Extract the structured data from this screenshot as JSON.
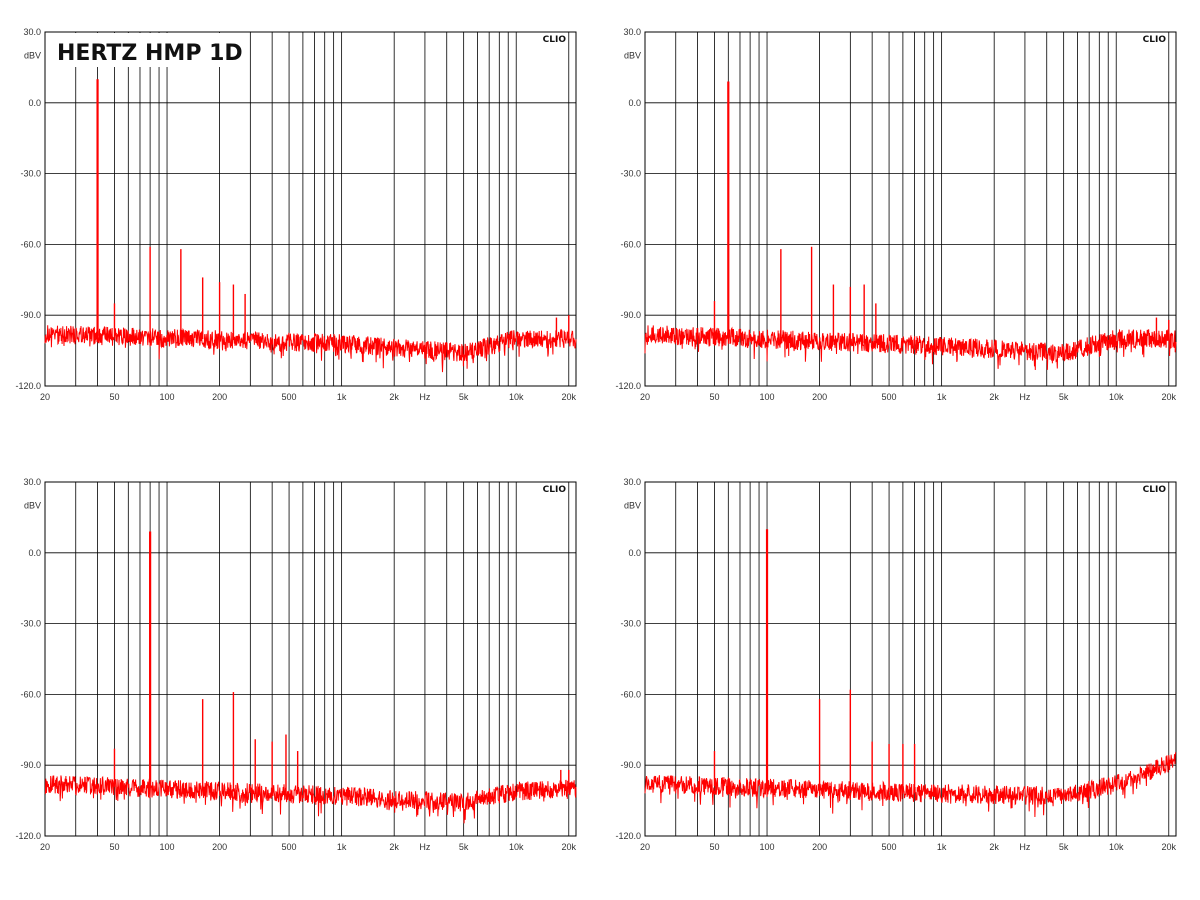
{
  "chart_data": [
    {
      "type": "line",
      "title": "HERTZ HMP 1D",
      "brand": "CLIO",
      "ylabel": "dBV",
      "xlabel": "Hz",
      "x_scale": "log",
      "xlim": [
        20,
        22000
      ],
      "ylim": [
        -120,
        30
      ],
      "y_ticks": [
        "30.0",
        "0.0",
        "-30.0",
        "-60.0",
        "-90.0",
        "-120.0"
      ],
      "x_ticks": [
        "20",
        "50",
        "100",
        "200",
        "500",
        "1k",
        "2k",
        "Hz",
        "5k",
        "10k",
        "20k"
      ],
      "grid": true,
      "color": "#ff0000",
      "fundamental_hz": 40,
      "series": [
        {
          "x": [
            20,
            40,
            50,
            80,
            120,
            160,
            200,
            240,
            280,
            1000,
            5000,
            10000,
            17000,
            20000,
            22000
          ],
          "values": [
            -98,
            10,
            -85,
            -61,
            -62,
            -74,
            -76,
            -77,
            -81,
            -102,
            -106,
            -100,
            -91,
            -90,
            -100
          ]
        }
      ]
    },
    {
      "type": "line",
      "brand": "CLIO",
      "ylabel": "dBV",
      "xlabel": "Hz",
      "x_scale": "log",
      "xlim": [
        20,
        22000
      ],
      "ylim": [
        -120,
        30
      ],
      "y_ticks": [
        "30.0",
        "0.0",
        "-30.0",
        "-60.0",
        "-90.0",
        "-120.0"
      ],
      "x_ticks": [
        "20",
        "50",
        "100",
        "200",
        "500",
        "1k",
        "2k",
        "Hz",
        "5k",
        "10k",
        "20k"
      ],
      "grid": true,
      "color": "#ff0000",
      "fundamental_hz": 60,
      "series": [
        {
          "x": [
            20,
            50,
            60,
            120,
            180,
            240,
            300,
            360,
            420,
            1000,
            5000,
            10000,
            17000,
            20000,
            22000
          ],
          "values": [
            -98,
            -84,
            9,
            -62,
            -61,
            -77,
            -78,
            -77,
            -85,
            -103,
            -106,
            -100,
            -91,
            -92,
            -100
          ]
        }
      ]
    },
    {
      "type": "line",
      "brand": "CLIO",
      "ylabel": "dBV",
      "xlabel": "Hz",
      "x_scale": "log",
      "xlim": [
        20,
        22000
      ],
      "ylim": [
        -120,
        30
      ],
      "y_ticks": [
        "30.0",
        "0.0",
        "-30.0",
        "-60.0",
        "-90.0",
        "-120.0"
      ],
      "x_ticks": [
        "20",
        "50",
        "100",
        "200",
        "500",
        "1k",
        "2k",
        "Hz",
        "5k",
        "10k",
        "20k"
      ],
      "grid": true,
      "color": "#ff0000",
      "fundamental_hz": 80,
      "series": [
        {
          "x": [
            20,
            50,
            80,
            160,
            240,
            320,
            400,
            480,
            560,
            1000,
            5000,
            10000,
            18000,
            20000,
            22000
          ],
          "values": [
            -98,
            -83,
            9,
            -62,
            -59,
            -79,
            -80,
            -77,
            -84,
            -103,
            -106,
            -101,
            -92,
            -92,
            -100
          ]
        }
      ]
    },
    {
      "type": "line",
      "brand": "CLIO",
      "ylabel": "dBV",
      "xlabel": "Hz",
      "x_scale": "log",
      "xlim": [
        20,
        22000
      ],
      "ylim": [
        -120,
        30
      ],
      "y_ticks": [
        "30.0",
        "0.0",
        "-30.0",
        "-60.0",
        "-90.0",
        "-120.0"
      ],
      "x_ticks": [
        "20",
        "50",
        "100",
        "200",
        "500",
        "1k",
        "2k",
        "Hz",
        "5k",
        "10k",
        "20k"
      ],
      "grid": true,
      "color": "#ff0000",
      "fundamental_hz": 100,
      "series": [
        {
          "x": [
            20,
            50,
            100,
            200,
            300,
            400,
            500,
            600,
            700,
            1000,
            5000,
            10000,
            18000,
            20000,
            22000
          ],
          "values": [
            -98,
            -84,
            10,
            -62,
            -58,
            -80,
            -81,
            -81,
            -81,
            -102,
            -103,
            -98,
            -91,
            -90,
            -88
          ]
        }
      ]
    }
  ]
}
